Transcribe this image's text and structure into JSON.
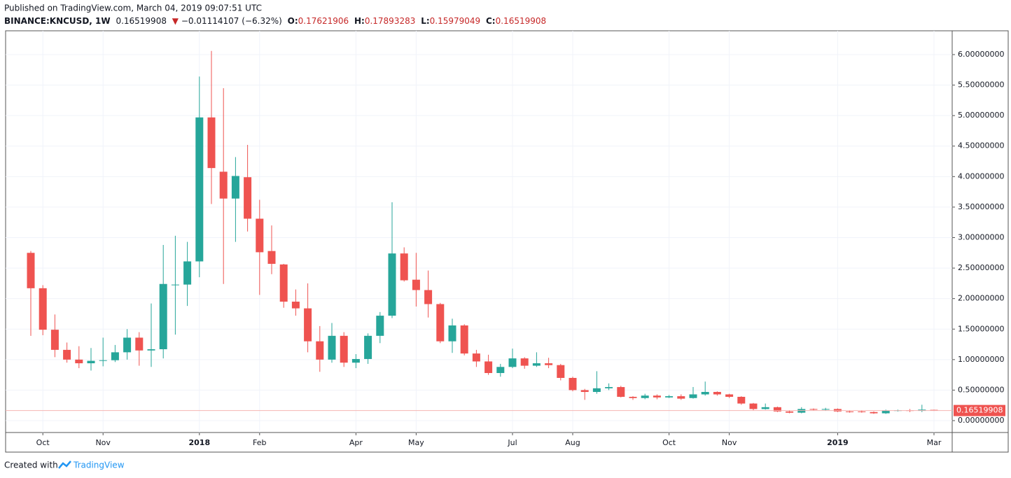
{
  "chart_data": {
    "type": "candlestick",
    "title": "Published on TradingView.com, March 04, 2019 09:07:51 UTC",
    "symbol": "BINANCE:KNCUSD, 1W",
    "change_arrow": "▼",
    "change": "−0.01114107 (−6.32%)",
    "ohlc_labels": [
      "O:",
      "H:",
      "L:",
      "C:"
    ],
    "categories": [
      null,
      "Oct",
      null,
      null,
      null,
      null,
      "Nov",
      null,
      null,
      null,
      null,
      null,
      null,
      null,
      "2018",
      null,
      null,
      null,
      null,
      "Feb",
      null,
      null,
      null,
      null,
      null,
      null,
      null,
      "Apr",
      null,
      null,
      null,
      null,
      "May",
      null,
      null,
      null,
      null,
      null,
      null,
      null,
      "Jul",
      null,
      null,
      null,
      null,
      "Aug",
      null,
      null,
      null,
      null,
      null,
      null,
      null,
      "Oct",
      null,
      null,
      null,
      null,
      "Nov",
      null,
      null,
      null,
      null,
      null,
      null,
      null,
      null,
      "2019",
      null,
      null,
      null,
      null,
      null,
      null,
      null,
      "Mar"
    ],
    "open": [
      2.75,
      2.17,
      1.49,
      1.16,
      1.0,
      0.94,
      0.98,
      0.99,
      1.12,
      1.36,
      1.15,
      1.17,
      2.22,
      2.23,
      2.61,
      4.97,
      4.08,
      3.64,
      3.99,
      3.31,
      2.78,
      2.56,
      1.95,
      1.84,
      1.3,
      1.0,
      1.39,
      0.95,
      1.01,
      1.39,
      1.72,
      2.74,
      2.31,
      2.14,
      1.91,
      1.3,
      1.56,
      1.1,
      0.97,
      0.78,
      0.88,
      1.02,
      0.9,
      0.94,
      0.91,
      0.7,
      0.5,
      0.47,
      0.53,
      0.55,
      0.39,
      0.37,
      0.41,
      0.38,
      0.4,
      0.37,
      0.43,
      0.47,
      0.43,
      0.39,
      0.28,
      0.19,
      0.22,
      0.15,
      0.13,
      0.19,
      0.18,
      0.19,
      0.15,
      0.15,
      0.14,
      0.12,
      0.16,
      0.17,
      0.16,
      0.17621906
    ],
    "high": [
      2.78,
      2.22,
      1.74,
      1.28,
      1.22,
      1.19,
      1.36,
      1.24,
      1.5,
      1.45,
      1.92,
      2.88,
      3.03,
      2.93,
      5.64,
      6.06,
      5.45,
      4.32,
      4.52,
      3.62,
      3.2,
      2.57,
      2.15,
      2.25,
      1.55,
      1.6,
      1.45,
      1.09,
      1.43,
      1.78,
      3.58,
      2.84,
      2.75,
      2.46,
      1.93,
      1.67,
      1.58,
      1.16,
      1.08,
      0.93,
      1.18,
      1.04,
      1.12,
      1.03,
      0.93,
      0.72,
      0.52,
      0.81,
      0.61,
      0.57,
      0.4,
      0.44,
      0.43,
      0.42,
      0.43,
      0.55,
      0.64,
      0.48,
      0.44,
      0.4,
      0.29,
      0.28,
      0.23,
      0.17,
      0.22,
      0.2,
      0.21,
      0.2,
      0.16,
      0.17,
      0.15,
      0.18,
      0.18,
      0.19,
      0.26,
      0.17893283
    ],
    "low": [
      1.39,
      1.4,
      1.04,
      0.95,
      0.86,
      0.82,
      0.89,
      0.96,
      1.0,
      0.9,
      0.88,
      1.02,
      1.41,
      1.88,
      2.35,
      3.55,
      2.24,
      2.93,
      3.1,
      2.06,
      2.4,
      1.85,
      1.72,
      1.12,
      0.8,
      0.95,
      0.88,
      0.86,
      0.93,
      1.27,
      1.68,
      2.28,
      1.87,
      1.69,
      1.27,
      1.11,
      1.07,
      0.88,
      0.75,
      0.72,
      0.86,
      0.85,
      0.88,
      0.86,
      0.66,
      0.48,
      0.34,
      0.44,
      0.5,
      0.38,
      0.34,
      0.35,
      0.35,
      0.37,
      0.34,
      0.36,
      0.41,
      0.41,
      0.37,
      0.26,
      0.17,
      0.18,
      0.14,
      0.12,
      0.12,
      0.16,
      0.16,
      0.14,
      0.13,
      0.13,
      0.11,
      0.11,
      0.15,
      0.14,
      0.14,
      0.15979049
    ],
    "close": [
      2.17,
      1.49,
      1.16,
      1.0,
      0.94,
      0.98,
      0.99,
      1.12,
      1.36,
      1.15,
      1.17,
      2.24,
      2.23,
      2.61,
      4.97,
      4.14,
      3.64,
      4.01,
      3.31,
      2.76,
      2.57,
      1.95,
      1.84,
      1.3,
      1.0,
      1.39,
      0.95,
      1.01,
      1.39,
      1.72,
      2.74,
      2.3,
      2.14,
      1.91,
      1.3,
      1.56,
      1.1,
      0.97,
      0.78,
      0.88,
      1.02,
      0.9,
      0.94,
      0.91,
      0.7,
      0.5,
      0.47,
      0.53,
      0.55,
      0.39,
      0.37,
      0.41,
      0.38,
      0.4,
      0.36,
      0.43,
      0.47,
      0.43,
      0.39,
      0.28,
      0.19,
      0.22,
      0.15,
      0.13,
      0.19,
      0.18,
      0.19,
      0.15,
      0.14,
      0.14,
      0.12,
      0.16,
      0.17,
      0.16,
      0.18,
      0.16519908
    ],
    "up_color": "#26a69a",
    "down_color": "#ef5350",
    "ylim": [
      -0.195,
      6.39
    ],
    "yticks": [
      {
        "value": 0,
        "label": "0.00000000"
      },
      {
        "value": 0.5,
        "label": "0.50000000"
      },
      {
        "value": 1,
        "label": "1.00000000"
      },
      {
        "value": 1.5,
        "label": "1.50000000"
      },
      {
        "value": 2,
        "label": "2.00000000"
      },
      {
        "value": 2.5,
        "label": "2.50000000"
      },
      {
        "value": 3,
        "label": "3.00000000"
      },
      {
        "value": 3.5,
        "label": "3.50000000"
      },
      {
        "value": 4,
        "label": "4.00000000"
      },
      {
        "value": 4.5,
        "label": "4.50000000"
      },
      {
        "value": 5,
        "label": "5.00000000"
      },
      {
        "value": 5.5,
        "label": "5.50000000"
      },
      {
        "value": 6,
        "label": "6.00000000"
      }
    ],
    "grid": true
  },
  "footer": {
    "created": "Created with",
    "brand": "TradingView"
  }
}
